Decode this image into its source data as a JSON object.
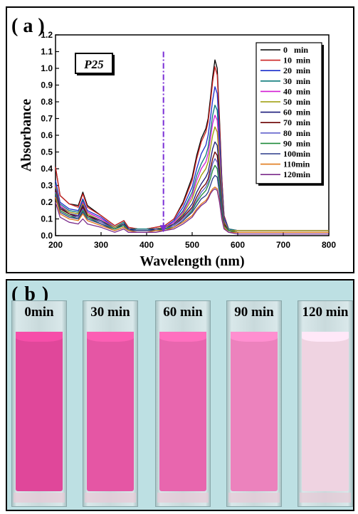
{
  "panel_a": {
    "label": "( a )",
    "sample_label": "P25"
  },
  "panel_b": {
    "label": "( b )",
    "cuvettes": [
      {
        "time_label": "0min",
        "color": "#e0479a"
      },
      {
        "time_label": "30 min",
        "color": "#e556a4"
      },
      {
        "time_label": "60 min",
        "color": "#e866ae"
      },
      {
        "time_label": "90 min",
        "color": "#ec82bd"
      },
      {
        "time_label": "120 min",
        "color": "#efd3e1"
      }
    ]
  },
  "chart_data": {
    "type": "line",
    "xlabel": "Wavelength (nm)",
    "ylabel": "Absorbance",
    "xlim": [
      200,
      800
    ],
    "ylim": [
      0.0,
      1.2
    ],
    "xticks": [
      200,
      300,
      400,
      500,
      600,
      700,
      800
    ],
    "yticks": [
      0.0,
      0.1,
      0.2,
      0.3,
      0.4,
      0.5,
      0.6,
      0.7,
      0.8,
      0.9,
      1.0,
      1.1,
      1.2
    ],
    "legend_position": "top-right",
    "annotation": {
      "type": "dash-dot arrow",
      "x": 437,
      "from_y": 1.1,
      "to_y": 0.02,
      "color": "#7b2fd6"
    },
    "x": [
      200,
      210,
      230,
      250,
      260,
      270,
      300,
      330,
      350,
      360,
      380,
      400,
      420,
      440,
      460,
      480,
      500,
      510,
      520,
      530,
      535,
      540,
      545,
      550,
      555,
      560,
      565,
      570,
      580,
      600,
      700,
      800
    ],
    "series": [
      {
        "name": "0   min",
        "color": "#000000",
        "values": [
          0.41,
          0.24,
          0.19,
          0.18,
          0.26,
          0.18,
          0.12,
          0.06,
          0.09,
          0.05,
          0.04,
          0.04,
          0.05,
          0.06,
          0.1,
          0.2,
          0.35,
          0.48,
          0.58,
          0.64,
          0.7,
          0.82,
          0.95,
          1.05,
          1.0,
          0.7,
          0.35,
          0.12,
          0.04,
          0.03,
          0.03,
          0.03
        ]
      },
      {
        "name": "10  min",
        "color": "#cc2222",
        "values": [
          0.41,
          0.24,
          0.19,
          0.17,
          0.25,
          0.17,
          0.12,
          0.06,
          0.09,
          0.05,
          0.04,
          0.04,
          0.05,
          0.06,
          0.1,
          0.19,
          0.33,
          0.46,
          0.56,
          0.62,
          0.68,
          0.79,
          0.92,
          1.01,
          0.96,
          0.67,
          0.34,
          0.12,
          0.04,
          0.03,
          0.03,
          0.03
        ]
      },
      {
        "name": "20  min",
        "color": "#1a2ecc",
        "values": [
          0.33,
          0.2,
          0.16,
          0.15,
          0.22,
          0.15,
          0.11,
          0.05,
          0.08,
          0.04,
          0.04,
          0.04,
          0.04,
          0.05,
          0.09,
          0.17,
          0.29,
          0.4,
          0.49,
          0.54,
          0.6,
          0.7,
          0.81,
          0.89,
          0.85,
          0.6,
          0.3,
          0.11,
          0.04,
          0.03,
          0.03,
          0.03
        ]
      },
      {
        "name": "30  min",
        "color": "#0b7a7a",
        "values": [
          0.31,
          0.19,
          0.15,
          0.14,
          0.21,
          0.14,
          0.1,
          0.05,
          0.08,
          0.04,
          0.04,
          0.04,
          0.04,
          0.05,
          0.08,
          0.15,
          0.26,
          0.36,
          0.43,
          0.48,
          0.53,
          0.62,
          0.72,
          0.78,
          0.75,
          0.53,
          0.27,
          0.1,
          0.04,
          0.03,
          0.03,
          0.03
        ]
      },
      {
        "name": "40  min",
        "color": "#d41cd4",
        "values": [
          0.3,
          0.18,
          0.14,
          0.13,
          0.2,
          0.14,
          0.1,
          0.05,
          0.07,
          0.04,
          0.03,
          0.03,
          0.04,
          0.05,
          0.08,
          0.14,
          0.24,
          0.33,
          0.4,
          0.44,
          0.49,
          0.58,
          0.67,
          0.72,
          0.69,
          0.49,
          0.25,
          0.09,
          0.03,
          0.03,
          0.03,
          0.03
        ]
      },
      {
        "name": "50  min",
        "color": "#9a9a00",
        "values": [
          0.29,
          0.17,
          0.14,
          0.13,
          0.19,
          0.13,
          0.09,
          0.05,
          0.07,
          0.04,
          0.03,
          0.03,
          0.04,
          0.05,
          0.07,
          0.13,
          0.22,
          0.3,
          0.36,
          0.4,
          0.44,
          0.52,
          0.6,
          0.65,
          0.62,
          0.44,
          0.23,
          0.08,
          0.03,
          0.03,
          0.03,
          0.03
        ]
      },
      {
        "name": "60  min",
        "color": "#1a1a7a",
        "values": [
          0.28,
          0.17,
          0.13,
          0.12,
          0.18,
          0.12,
          0.09,
          0.04,
          0.07,
          0.04,
          0.03,
          0.03,
          0.04,
          0.04,
          0.07,
          0.12,
          0.19,
          0.26,
          0.31,
          0.35,
          0.38,
          0.45,
          0.52,
          0.56,
          0.54,
          0.38,
          0.2,
          0.07,
          0.03,
          0.02,
          0.02,
          0.02
        ]
      },
      {
        "name": "70  min",
        "color": "#6b0000",
        "values": [
          0.27,
          0.16,
          0.13,
          0.11,
          0.17,
          0.12,
          0.08,
          0.04,
          0.06,
          0.03,
          0.03,
          0.03,
          0.03,
          0.04,
          0.06,
          0.11,
          0.17,
          0.23,
          0.28,
          0.31,
          0.34,
          0.4,
          0.46,
          0.5,
          0.48,
          0.34,
          0.18,
          0.07,
          0.03,
          0.02,
          0.02,
          0.02
        ]
      },
      {
        "name": "80  min",
        "color": "#6060cc",
        "values": [
          0.26,
          0.15,
          0.12,
          0.11,
          0.16,
          0.11,
          0.08,
          0.04,
          0.06,
          0.03,
          0.03,
          0.03,
          0.03,
          0.04,
          0.06,
          0.1,
          0.16,
          0.21,
          0.26,
          0.29,
          0.32,
          0.37,
          0.43,
          0.46,
          0.44,
          0.32,
          0.17,
          0.06,
          0.03,
          0.02,
          0.02,
          0.02
        ]
      },
      {
        "name": "90  min",
        "color": "#1f8a3a",
        "values": [
          0.25,
          0.15,
          0.12,
          0.1,
          0.15,
          0.11,
          0.07,
          0.04,
          0.06,
          0.03,
          0.03,
          0.03,
          0.03,
          0.04,
          0.05,
          0.09,
          0.15,
          0.2,
          0.24,
          0.27,
          0.3,
          0.34,
          0.39,
          0.42,
          0.4,
          0.29,
          0.15,
          0.06,
          0.03,
          0.02,
          0.02,
          0.02
        ]
      },
      {
        "name": "100min",
        "color": "#2a3a8a",
        "values": [
          0.24,
          0.14,
          0.11,
          0.1,
          0.14,
          0.1,
          0.07,
          0.03,
          0.05,
          0.03,
          0.03,
          0.03,
          0.03,
          0.03,
          0.05,
          0.09,
          0.14,
          0.18,
          0.22,
          0.24,
          0.26,
          0.3,
          0.34,
          0.36,
          0.35,
          0.25,
          0.13,
          0.05,
          0.02,
          0.02,
          0.02,
          0.02
        ]
      },
      {
        "name": "110min",
        "color": "#e07a1a",
        "values": [
          0.23,
          0.13,
          0.1,
          0.09,
          0.13,
          0.09,
          0.06,
          0.03,
          0.05,
          0.03,
          0.02,
          0.02,
          0.03,
          0.03,
          0.05,
          0.08,
          0.12,
          0.16,
          0.19,
          0.21,
          0.23,
          0.26,
          0.28,
          0.29,
          0.28,
          0.21,
          0.11,
          0.05,
          0.02,
          0.02,
          0.02,
          0.02
        ]
      },
      {
        "name": "120min",
        "color": "#7a2a8a",
        "values": [
          0.2,
          0.11,
          0.08,
          0.07,
          0.1,
          0.07,
          0.05,
          0.02,
          0.04,
          0.02,
          0.02,
          0.02,
          0.02,
          0.03,
          0.04,
          0.07,
          0.11,
          0.15,
          0.18,
          0.2,
          0.22,
          0.25,
          0.27,
          0.28,
          0.27,
          0.2,
          0.1,
          0.04,
          0.02,
          0.01,
          0.01,
          0.01
        ]
      }
    ]
  }
}
